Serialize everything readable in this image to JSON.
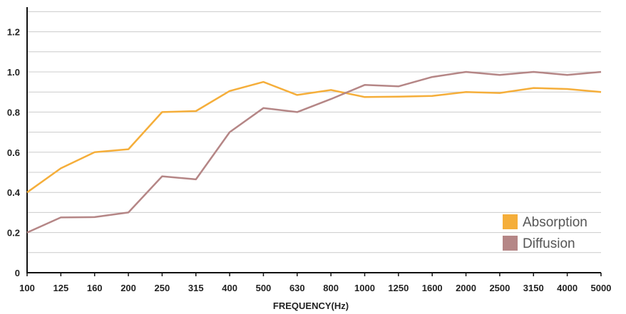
{
  "chart_data": {
    "type": "line",
    "title": "",
    "xlabel": "FREQUENCY(Hz)",
    "ylabel": "",
    "categories": [
      "100",
      "125",
      "160",
      "200",
      "250",
      "315",
      "400",
      "500",
      "630",
      "800",
      "1000",
      "1250",
      "1600",
      "2000",
      "2500",
      "3150",
      "4000",
      "5000"
    ],
    "y_ticks": [
      "0",
      "0.2",
      "0.4",
      "0.6",
      "0.8",
      "1.0",
      "1.2"
    ],
    "ylim": [
      0,
      1.3
    ],
    "grid": true,
    "legend_position": "bottom-right",
    "series": [
      {
        "name": "Absorption",
        "color": "#f5ae3a",
        "values": [
          0.4,
          0.52,
          0.6,
          0.615,
          0.8,
          0.805,
          0.905,
          0.95,
          0.885,
          0.91,
          0.875,
          0.877,
          0.88,
          0.9,
          0.895,
          0.92,
          0.915,
          0.9
        ]
      },
      {
        "name": "Diffusion",
        "color": "#b58686",
        "values": [
          0.2,
          0.275,
          0.277,
          0.3,
          0.48,
          0.465,
          0.7,
          0.82,
          0.8,
          0.865,
          0.935,
          0.928,
          0.975,
          1.0,
          0.985,
          1.0,
          0.985,
          1.0
        ]
      }
    ]
  }
}
